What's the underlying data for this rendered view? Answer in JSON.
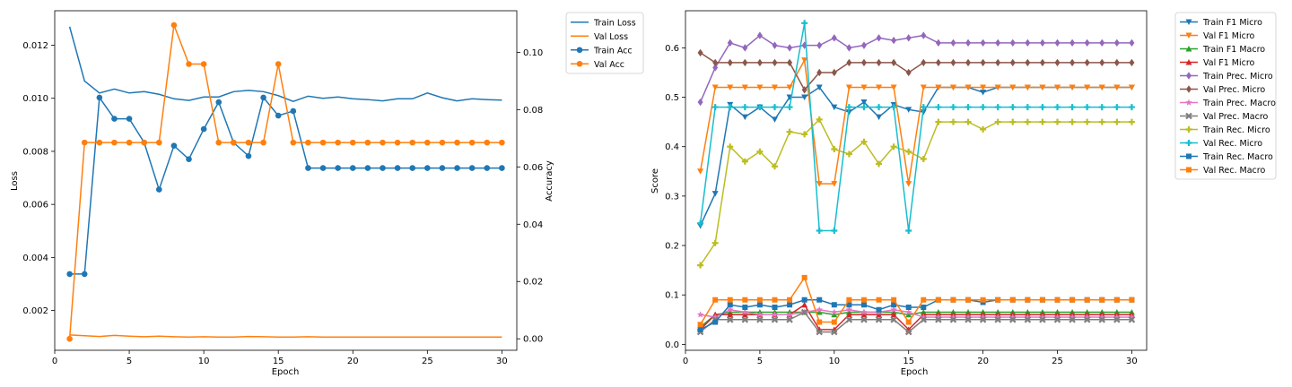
{
  "chart_data": [
    {
      "type": "line",
      "xlabel": "Epoch",
      "ylabel": "Loss",
      "y2label": "Accuracy",
      "xlim": [
        0,
        31
      ],
      "ylim": [
        0.0005,
        0.0133
      ],
      "y2lim": [
        -0.004,
        0.1145
      ],
      "xticks": [
        0,
        5,
        10,
        15,
        20,
        25,
        30
      ],
      "yticks": [
        0.002,
        0.004,
        0.006,
        0.008,
        0.01,
        0.012
      ],
      "ytick_labels": [
        "0.002",
        "0.004",
        "0.006",
        "0.008",
        "0.010",
        "0.012"
      ],
      "y2ticks": [
        0.0,
        0.02,
        0.04,
        0.06,
        0.08,
        0.1
      ],
      "y2tick_labels": [
        "0.00",
        "0.02",
        "0.04",
        "0.06",
        "0.08",
        "0.10"
      ],
      "legend_position": "outside-top-right",
      "x": [
        1,
        2,
        3,
        4,
        5,
        6,
        7,
        8,
        9,
        10,
        11,
        12,
        13,
        14,
        15,
        16,
        17,
        18,
        19,
        20,
        21,
        22,
        23,
        24,
        25,
        26,
        27,
        28,
        29,
        30
      ],
      "series": [
        {
          "name": "Train Loss",
          "axis": "left",
          "color": "#1f77b4",
          "marker": "none",
          "values": [
            0.0127,
            0.01065,
            0.0102,
            0.01035,
            0.0102,
            0.01025,
            0.01015,
            0.00998,
            0.00992,
            0.01005,
            0.01005,
            0.01025,
            0.0103,
            0.01025,
            0.0101,
            0.00988,
            0.01008,
            0.01,
            0.01005,
            0.00998,
            0.00995,
            0.0099,
            0.00998,
            0.00998,
            0.0102,
            0.01002,
            0.0099,
            0.00998,
            0.00995,
            0.00993
          ]
        },
        {
          "name": "Val Loss",
          "axis": "left",
          "color": "#ff7f0e",
          "marker": "none",
          "values": [
            0.00108,
            0.00105,
            0.00102,
            0.00106,
            0.00103,
            0.00101,
            0.00103,
            0.00101,
            0.001,
            0.00101,
            0.001,
            0.001,
            0.00102,
            0.00101,
            0.001,
            0.001,
            0.00101,
            0.001,
            0.001,
            0.001,
            0.001,
            0.001,
            0.001,
            0.001,
            0.001,
            0.001,
            0.001,
            0.001,
            0.001,
            0.001
          ]
        },
        {
          "name": "Train Acc",
          "axis": "right",
          "color": "#1f77b4",
          "marker": "circle",
          "values": [
            0.0226,
            0.0226,
            0.0842,
            0.0768,
            0.0768,
            0.0685,
            0.0521,
            0.0674,
            0.0627,
            0.0732,
            0.0826,
            0.0685,
            0.0638,
            0.0842,
            0.0779,
            0.0795,
            0.0596,
            0.0596,
            0.0596,
            0.0596,
            0.0596,
            0.0596,
            0.0596,
            0.0596,
            0.0596,
            0.0596,
            0.0596,
            0.0596,
            0.0596,
            0.0596
          ]
        },
        {
          "name": "Val Acc",
          "axis": "right",
          "color": "#ff7f0e",
          "marker": "circle",
          "values": [
            0.0,
            0.0685,
            0.0685,
            0.0685,
            0.0685,
            0.0685,
            0.0685,
            0.1095,
            0.0959,
            0.0959,
            0.0685,
            0.0685,
            0.0685,
            0.0685,
            0.0959,
            0.0685,
            0.0685,
            0.0685,
            0.0685,
            0.0685,
            0.0685,
            0.0685,
            0.0685,
            0.0685,
            0.0685,
            0.0685,
            0.0685,
            0.0685,
            0.0685,
            0.0685
          ]
        }
      ]
    },
    {
      "type": "line",
      "xlabel": "Epoch",
      "ylabel": "Score",
      "xlim": [
        0,
        31
      ],
      "ylim": [
        -0.012,
        0.675
      ],
      "xticks": [
        0,
        5,
        10,
        15,
        20,
        25,
        30
      ],
      "yticks": [
        0.0,
        0.1,
        0.2,
        0.3,
        0.4,
        0.5,
        0.6
      ],
      "ytick_labels": [
        "0.0",
        "0.1",
        "0.2",
        "0.3",
        "0.4",
        "0.5",
        "0.6"
      ],
      "legend_position": "outside-top-right",
      "x": [
        1,
        2,
        3,
        4,
        5,
        6,
        7,
        8,
        9,
        10,
        11,
        12,
        13,
        14,
        15,
        16,
        17,
        18,
        19,
        20,
        21,
        22,
        23,
        24,
        25,
        26,
        27,
        28,
        29,
        30
      ],
      "series": [
        {
          "name": "Train F1 Micro",
          "color": "#1f77b4",
          "marker": "tri-down",
          "values": [
            0.24,
            0.305,
            0.485,
            0.46,
            0.48,
            0.455,
            0.5,
            0.5,
            0.52,
            0.48,
            0.47,
            0.49,
            0.46,
            0.485,
            0.475,
            0.47,
            0.52,
            0.52,
            0.52,
            0.51,
            0.52,
            0.52,
            0.52,
            0.52,
            0.52,
            0.52,
            0.52,
            0.52,
            0.52,
            0.52
          ]
        },
        {
          "name": "Val F1 Micro",
          "color": "#ff7f0e",
          "marker": "tri-down",
          "values": [
            0.35,
            0.52,
            0.52,
            0.52,
            0.52,
            0.52,
            0.52,
            0.575,
            0.325,
            0.325,
            0.52,
            0.52,
            0.52,
            0.52,
            0.325,
            0.52,
            0.52,
            0.52,
            0.52,
            0.52,
            0.52,
            0.52,
            0.52,
            0.52,
            0.52,
            0.52,
            0.52,
            0.52,
            0.52,
            0.52
          ]
        },
        {
          "name": "Train F1 Macro",
          "color": "#2ca02c",
          "marker": "tri-up",
          "values": [
            0.035,
            0.06,
            0.065,
            0.065,
            0.065,
            0.065,
            0.065,
            0.065,
            0.065,
            0.06,
            0.065,
            0.065,
            0.065,
            0.065,
            0.06,
            0.065,
            0.065,
            0.065,
            0.065,
            0.065,
            0.065,
            0.065,
            0.065,
            0.065,
            0.065,
            0.065,
            0.065,
            0.065,
            0.065,
            0.065
          ]
        },
        {
          "name": "Val F1 Micro",
          "color": "#d62728",
          "marker": "tri-up",
          "values": [
            0.03,
            0.06,
            0.06,
            0.06,
            0.06,
            0.06,
            0.06,
            0.08,
            0.03,
            0.03,
            0.06,
            0.06,
            0.06,
            0.06,
            0.03,
            0.06,
            0.06,
            0.06,
            0.06,
            0.06,
            0.06,
            0.06,
            0.06,
            0.06,
            0.06,
            0.06,
            0.06,
            0.06,
            0.06,
            0.06
          ]
        },
        {
          "name": "Train Prec. Micro",
          "color": "#9467bd",
          "marker": "diamond",
          "values": [
            0.49,
            0.56,
            0.61,
            0.6,
            0.625,
            0.605,
            0.6,
            0.605,
            0.605,
            0.62,
            0.6,
            0.605,
            0.62,
            0.615,
            0.62,
            0.625,
            0.61,
            0.61,
            0.61,
            0.61,
            0.61,
            0.61,
            0.61,
            0.61,
            0.61,
            0.61,
            0.61,
            0.61,
            0.61,
            0.61
          ]
        },
        {
          "name": "Val Prec. Micro",
          "color": "#8c564b",
          "marker": "diamond",
          "values": [
            0.59,
            0.57,
            0.57,
            0.57,
            0.57,
            0.57,
            0.57,
            0.515,
            0.55,
            0.55,
            0.57,
            0.57,
            0.57,
            0.57,
            0.55,
            0.57,
            0.57,
            0.57,
            0.57,
            0.57,
            0.57,
            0.57,
            0.57,
            0.57,
            0.57,
            0.57,
            0.57,
            0.57,
            0.57,
            0.57
          ]
        },
        {
          "name": "Train Prec. Macro",
          "color": "#e377c2",
          "marker": "star",
          "values": [
            0.06,
            0.055,
            0.07,
            0.065,
            0.06,
            0.06,
            0.06,
            0.065,
            0.07,
            0.065,
            0.07,
            0.065,
            0.065,
            0.07,
            0.065,
            0.055,
            0.055,
            0.055,
            0.055,
            0.055,
            0.055,
            0.055,
            0.055,
            0.055,
            0.055,
            0.055,
            0.055,
            0.055,
            0.055,
            0.055
          ]
        },
        {
          "name": "Val Prec. Macro",
          "color": "#7f7f7f",
          "marker": "x",
          "values": [
            0.025,
            0.05,
            0.05,
            0.05,
            0.05,
            0.05,
            0.05,
            0.065,
            0.025,
            0.025,
            0.05,
            0.05,
            0.05,
            0.05,
            0.025,
            0.05,
            0.05,
            0.05,
            0.05,
            0.05,
            0.05,
            0.05,
            0.05,
            0.05,
            0.05,
            0.05,
            0.05,
            0.05,
            0.05,
            0.05
          ]
        },
        {
          "name": "Train Rec. Micro",
          "color": "#bcbd22",
          "marker": "plus",
          "values": [
            0.16,
            0.205,
            0.4,
            0.37,
            0.39,
            0.36,
            0.43,
            0.425,
            0.455,
            0.395,
            0.385,
            0.41,
            0.365,
            0.4,
            0.39,
            0.375,
            0.45,
            0.45,
            0.45,
            0.435,
            0.45,
            0.45,
            0.45,
            0.45,
            0.45,
            0.45,
            0.45,
            0.45,
            0.45,
            0.45
          ]
        },
        {
          "name": "Val Rec. Micro",
          "color": "#17becf",
          "marker": "plus",
          "values": [
            0.245,
            0.48,
            0.48,
            0.48,
            0.48,
            0.48,
            0.48,
            0.65,
            0.23,
            0.23,
            0.48,
            0.48,
            0.48,
            0.48,
            0.23,
            0.48,
            0.48,
            0.48,
            0.48,
            0.48,
            0.48,
            0.48,
            0.48,
            0.48,
            0.48,
            0.48,
            0.48,
            0.48,
            0.48,
            0.48
          ]
        },
        {
          "name": "Train Rec. Macro",
          "color": "#1f77b4",
          "marker": "square",
          "values": [
            0.03,
            0.045,
            0.08,
            0.075,
            0.08,
            0.075,
            0.08,
            0.09,
            0.09,
            0.08,
            0.08,
            0.08,
            0.07,
            0.08,
            0.075,
            0.075,
            0.09,
            0.09,
            0.09,
            0.085,
            0.09,
            0.09,
            0.09,
            0.09,
            0.09,
            0.09,
            0.09,
            0.09,
            0.09,
            0.09
          ]
        },
        {
          "name": "Val Rec. Macro",
          "color": "#ff7f0e",
          "marker": "square",
          "values": [
            0.04,
            0.09,
            0.09,
            0.09,
            0.09,
            0.09,
            0.09,
            0.135,
            0.045,
            0.045,
            0.09,
            0.09,
            0.09,
            0.09,
            0.045,
            0.09,
            0.09,
            0.09,
            0.09,
            0.09,
            0.09,
            0.09,
            0.09,
            0.09,
            0.09,
            0.09,
            0.09,
            0.09,
            0.09,
            0.09
          ]
        }
      ]
    }
  ]
}
